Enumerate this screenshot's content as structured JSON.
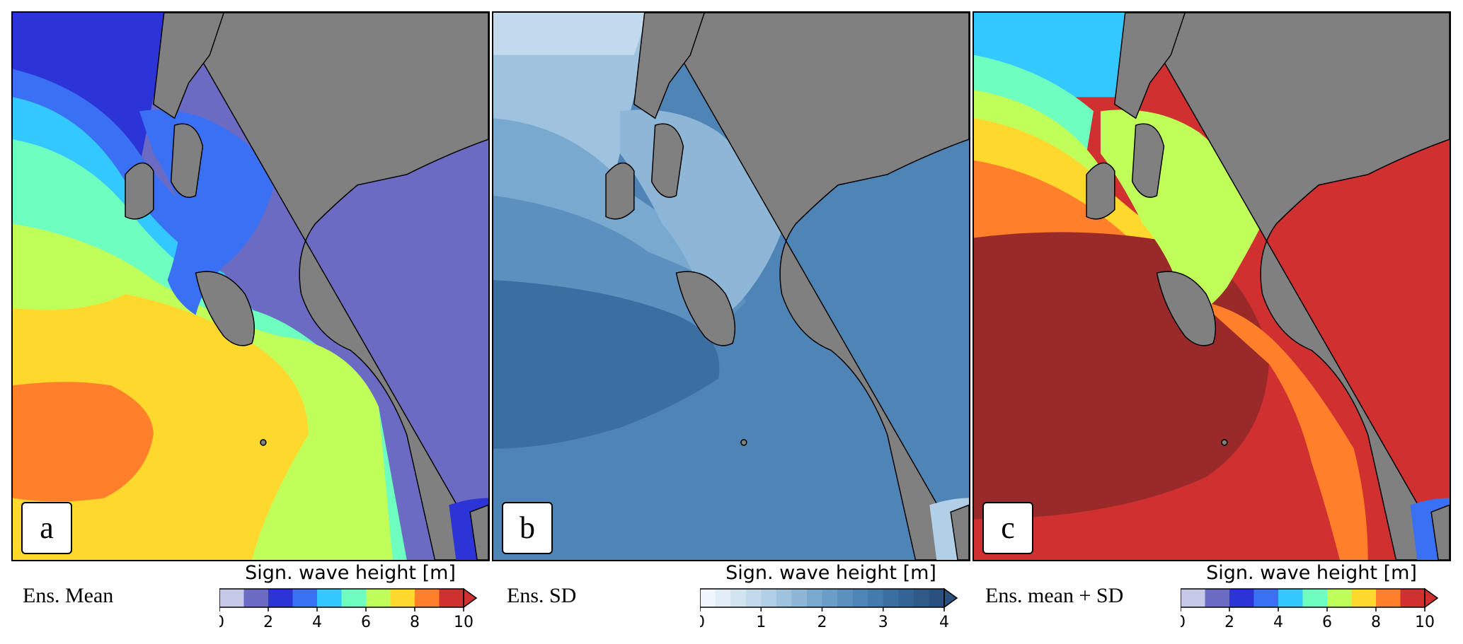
{
  "panels": [
    {
      "letter": "a",
      "caption": "Ens. Mean",
      "colorbar_title": "Sign. wave height [m]",
      "colorbar_ticks": [
        "0",
        "2",
        "4",
        "6",
        "8",
        "10"
      ],
      "colors": [
        "#c6c8e8",
        "#6b6bc4",
        "#2c34d8",
        "#3a70f4",
        "#33c8ff",
        "#6effc0",
        "#c0ff5a",
        "#ffd82e",
        "#ff7f2a",
        "#d03030"
      ]
    },
    {
      "letter": "b",
      "caption": "Ens. SD",
      "colorbar_title": "Sign. wave height [m]",
      "colorbar_ticks": [
        "0",
        "1",
        "2",
        "3",
        "4"
      ],
      "colors": [
        "#f0f6fc",
        "#e2edf7",
        "#d3e4f1",
        "#c3daec",
        "#b1cfe6",
        "#9fc3df",
        "#8db6d7",
        "#7aa9cf",
        "#6a9dc7",
        "#5c91bf",
        "#4f85b6",
        "#447aac",
        "#3b6fa1",
        "#346495",
        "#2f5a88",
        "#2a5080"
      ]
    },
    {
      "letter": "c",
      "caption": "Ens. mean + SD",
      "colorbar_title": "Sign. wave height [m]",
      "colorbar_ticks": [
        "0",
        "2",
        "4",
        "6",
        "8",
        "10"
      ],
      "colors": [
        "#c6c8e8",
        "#6b6bc4",
        "#2c34d8",
        "#3a70f4",
        "#33c8ff",
        "#6effc0",
        "#c0ff5a",
        "#ffd82e",
        "#ff7f2a",
        "#d03030"
      ]
    }
  ],
  "colors": {
    "land": "#808080",
    "coast": "#000000",
    "exceed": "#9a2a2a"
  }
}
